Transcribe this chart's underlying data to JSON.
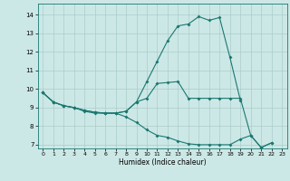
{
  "xlabel": "Humidex (Indice chaleur)",
  "bg_color": "#cce8e6",
  "grid_color": "#aaccca",
  "line_color": "#1a7870",
  "xlim": [
    -0.5,
    23.5
  ],
  "ylim": [
    6.8,
    14.6
  ],
  "yticks": [
    7,
    8,
    9,
    10,
    11,
    12,
    13,
    14
  ],
  "xticks": [
    0,
    1,
    2,
    3,
    4,
    5,
    6,
    7,
    8,
    9,
    10,
    11,
    12,
    13,
    14,
    15,
    16,
    17,
    18,
    19,
    20,
    21,
    22,
    23
  ],
  "line1_y": [
    9.8,
    9.3,
    9.1,
    9.0,
    8.8,
    8.7,
    8.7,
    8.7,
    8.8,
    9.3,
    10.4,
    11.5,
    12.6,
    13.4,
    13.5,
    13.9,
    13.7,
    13.85,
    11.7,
    9.4,
    null,
    null,
    null,
    null
  ],
  "line2_y": [
    9.8,
    9.3,
    9.1,
    9.0,
    8.85,
    8.75,
    8.7,
    8.7,
    8.8,
    9.3,
    9.5,
    10.3,
    10.35,
    10.4,
    9.5,
    9.5,
    9.5,
    9.5,
    9.5,
    9.5,
    7.5,
    6.85,
    7.1,
    null
  ],
  "line3_y": [
    9.8,
    9.3,
    9.1,
    9.0,
    8.85,
    8.75,
    8.7,
    8.7,
    8.5,
    8.2,
    7.8,
    7.5,
    7.4,
    7.2,
    7.05,
    7.0,
    7.0,
    7.0,
    7.0,
    7.3,
    7.5,
    6.85,
    7.1,
    null
  ]
}
